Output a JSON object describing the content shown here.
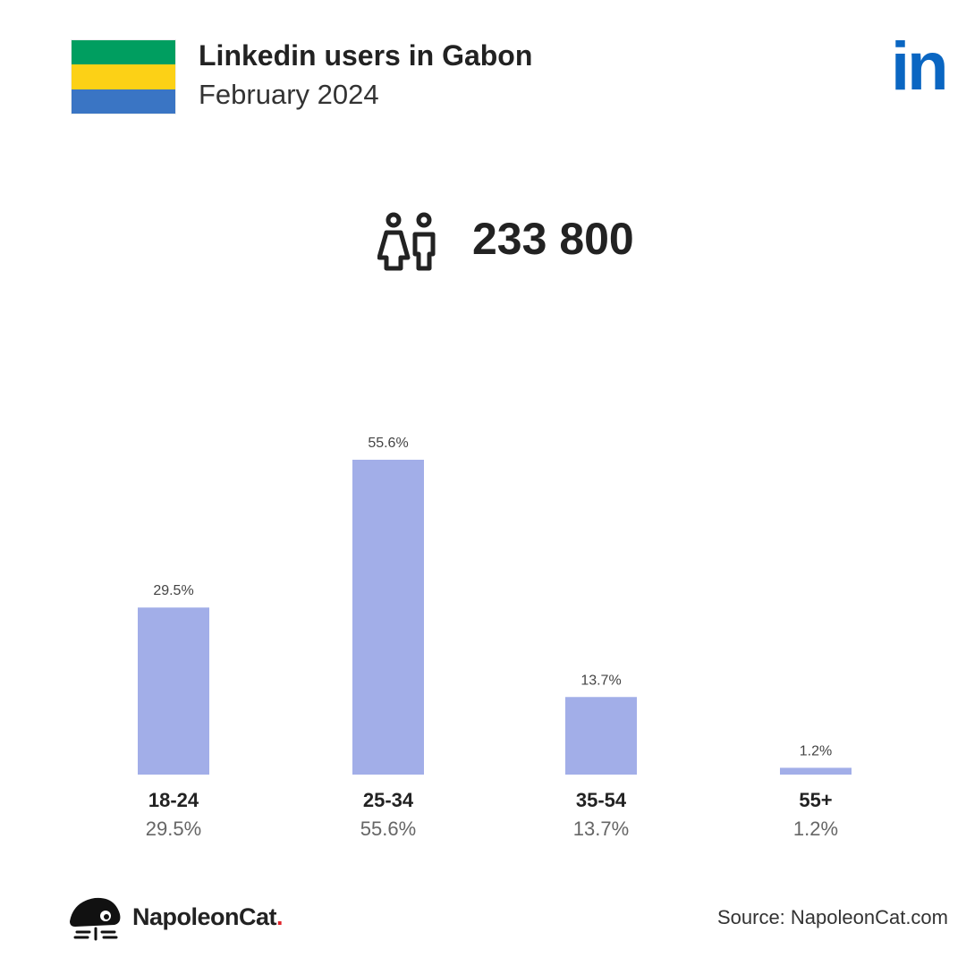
{
  "header": {
    "title": "Linkedin users in Gabon",
    "subtitle": "February 2024",
    "brand_logo_text": "in",
    "flag_colors": [
      "#009e60",
      "#fcd116",
      "#3a75c4"
    ]
  },
  "summary": {
    "icon": "users-icon",
    "total_users": "233 800"
  },
  "chart_data": {
    "type": "bar",
    "categories": [
      "18-24",
      "25-34",
      "35-54",
      "55+"
    ],
    "values": [
      29.5,
      55.6,
      13.7,
      1.2
    ],
    "value_labels": [
      "29.5%",
      "55.6%",
      "13.7%",
      "1.2%"
    ],
    "bar_color": "#a2aee8",
    "grid": false,
    "ylim": [
      0,
      55.6
    ]
  },
  "footer": {
    "brand_name": "NapoleonCat",
    "brand_dot": ".",
    "brand_dot_color": "#e0242a",
    "source": "Source: NapoleonCat.com"
  }
}
